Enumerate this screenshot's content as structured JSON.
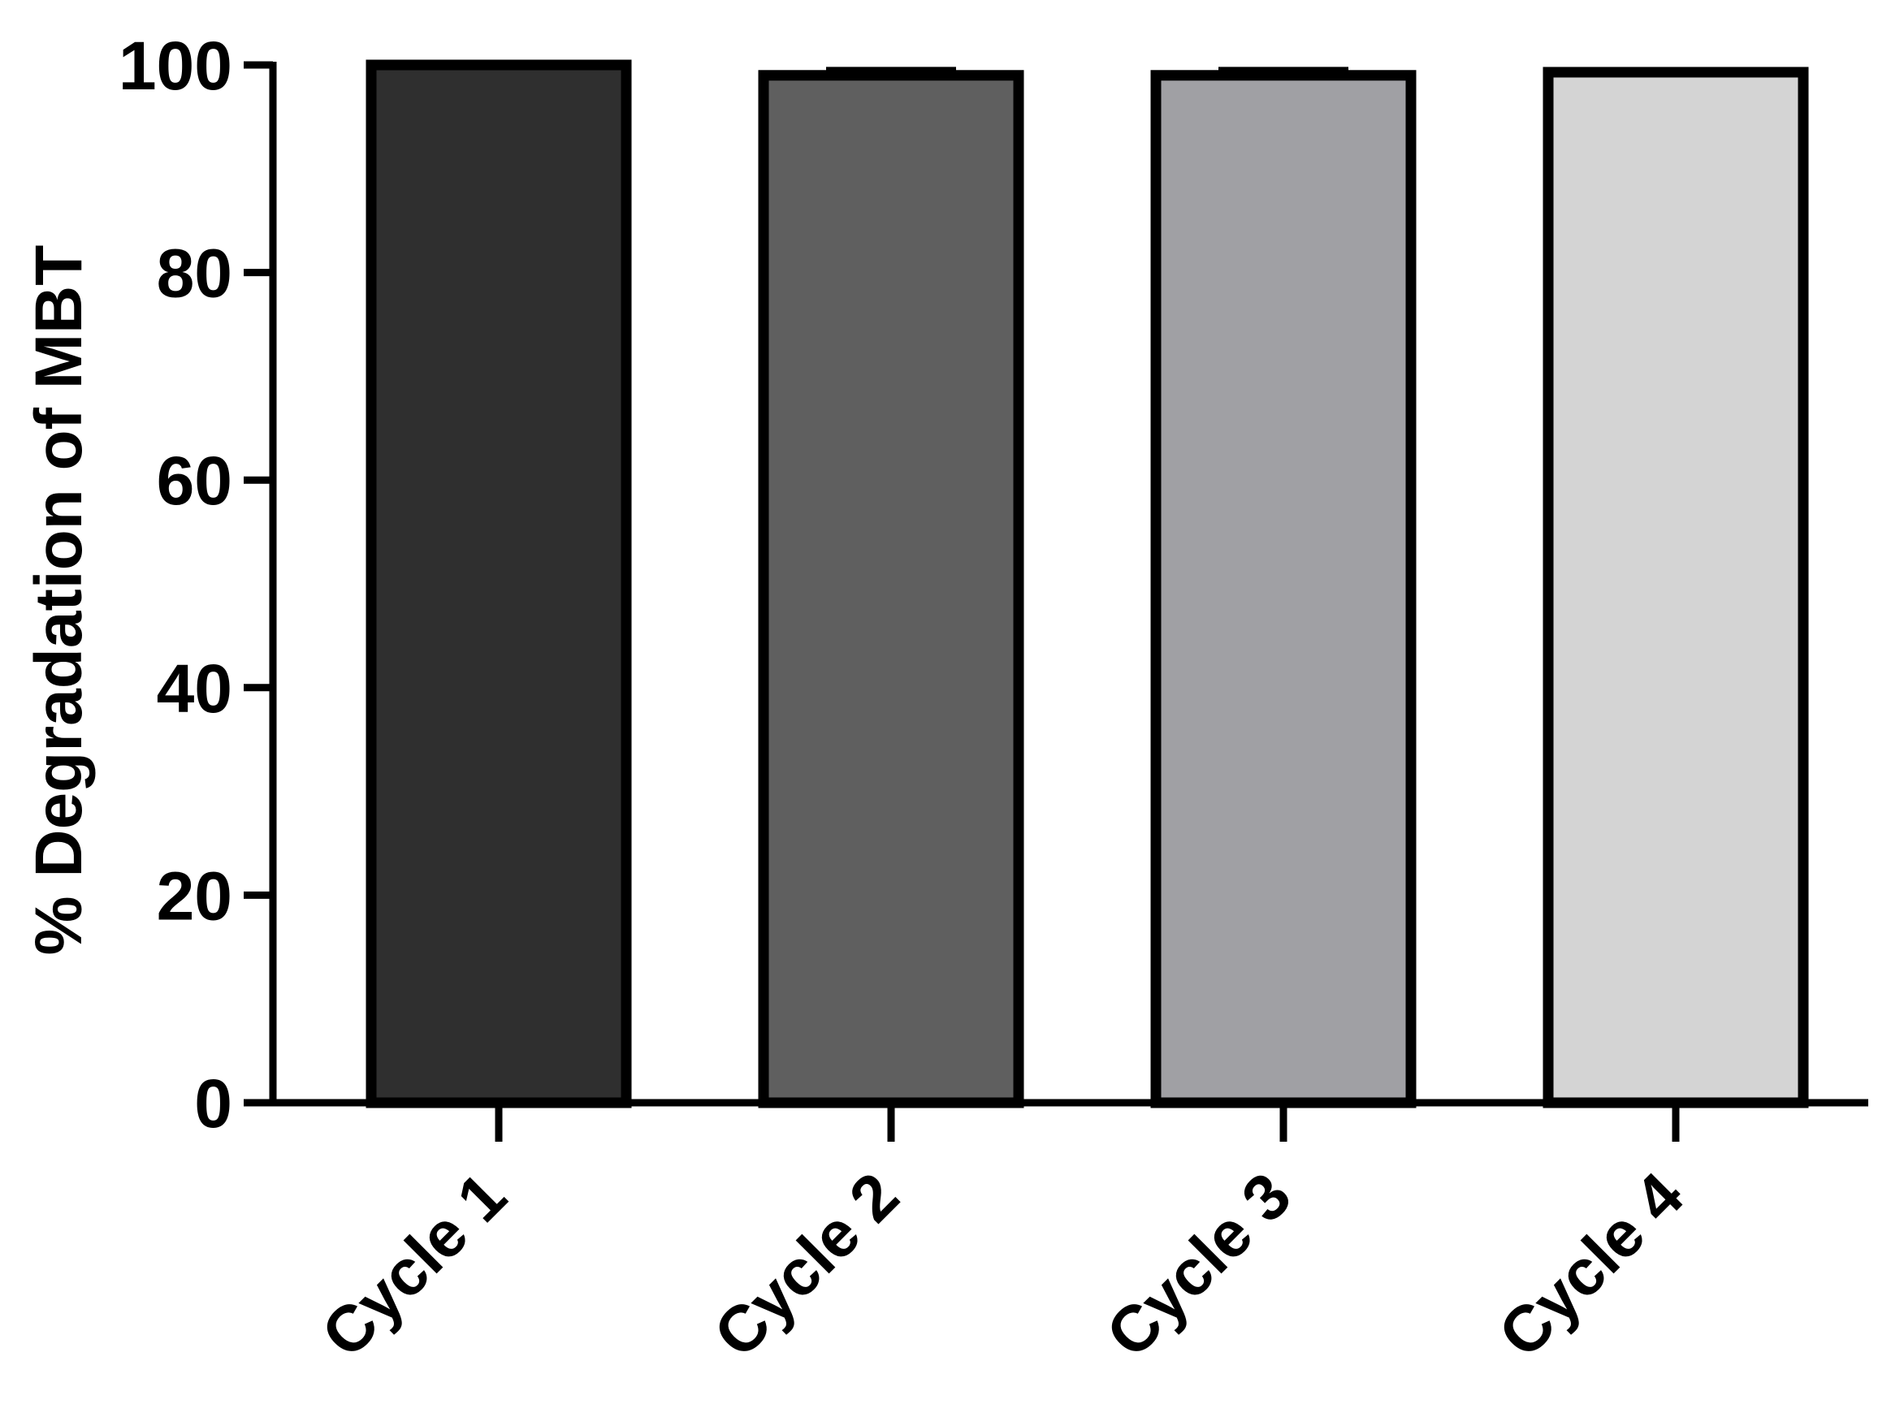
{
  "chart_data": {
    "type": "bar",
    "title": "",
    "xlabel": "",
    "ylabel": "% Degradation of MBT",
    "categories": [
      "Cycle 1",
      "Cycle 2",
      "Cycle 3",
      "Cycle 4"
    ],
    "values": [
      100,
      99,
      99,
      99.3
    ],
    "errors": [
      0,
      0.5,
      0.5,
      0
    ],
    "ylim": [
      0,
      100
    ],
    "yticks": [
      0,
      20,
      40,
      60,
      80,
      100
    ],
    "ytick_labels": [
      "0",
      "20",
      "40",
      "60",
      "80",
      "100"
    ],
    "bar_colors": [
      "#2f2f2f",
      "#5f5f5f",
      "#a0a0a4",
      "#d4d4d4"
    ],
    "edge_color": "#000000",
    "grid": false,
    "legend": "none"
  }
}
